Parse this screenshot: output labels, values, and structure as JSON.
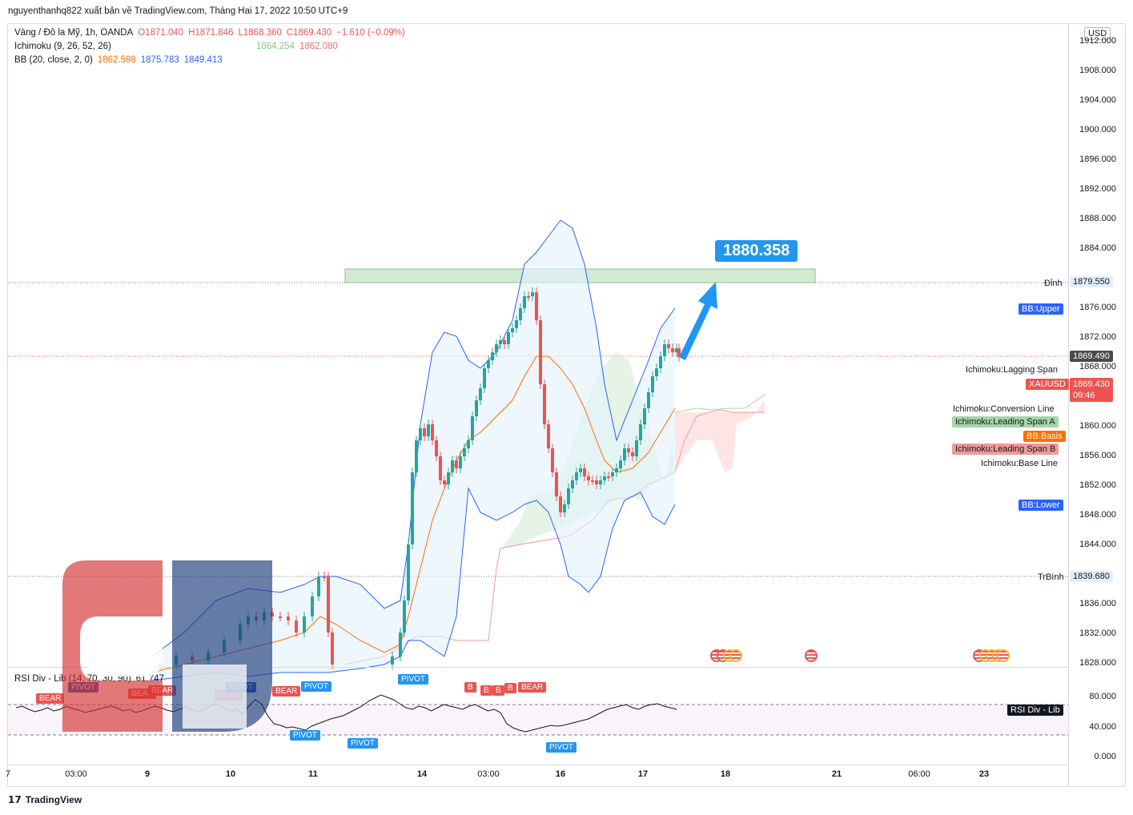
{
  "header": {
    "publish_text": "nguyenthanhq822 xuất bản về TradingView.com, Tháng Hai 17, 2022 10:50 UTC+9"
  },
  "legend": {
    "symbol": "Vàng / Đô la Mỹ, 1h, OANDA",
    "open": "O1871.040",
    "high": "H1871.846",
    "low": "L1868.360",
    "close": "C1869.430",
    "change": "−1.610 (−0.09%)",
    "ichimoku_label": "Ichimoku (9, 26, 52, 26)",
    "ichimoku_v1": "1864.254",
    "ichimoku_v2": "1862.080",
    "bb_label": "BB (20, close, 2, 0)",
    "bb_v1": "1862.598",
    "bb_v2": "1875.783",
    "bb_v3": "1849.413"
  },
  "price_axis": {
    "currency": "USD",
    "ticks": [
      "1912.000",
      "1908.000",
      "1904.000",
      "1900.000",
      "1896.000",
      "1892.000",
      "1888.000",
      "1884.000",
      "1876.000",
      "1872.000",
      "1868.000",
      "1860.000",
      "1856.000",
      "1852.000",
      "1848.000",
      "1844.000",
      "1836.000",
      "1832.000",
      "1828.000"
    ],
    "dinh_label": "Đỉnh",
    "dinh_value": "1879.550",
    "trbinh_label": "TrBình",
    "trbinh_value": "1839.680",
    "last_price": "1869.490",
    "xauusd_label": "XAUUSD",
    "xauusd_value": "1869.430",
    "countdown": "09:46"
  },
  "indicator_tags": {
    "bb_upper": "BB:Upper",
    "lagging": "Ichimoku:Lagging Span",
    "conversion": "Ichimoku:Conversion Line",
    "leading_a": "Ichimoku:Leading Span A",
    "bb_basis": "BB:Basis",
    "leading_b": "Ichimoku:Leading Span B",
    "base_line": "Ichimoku:Base Line",
    "bb_lower": "BB:Lower"
  },
  "target": {
    "value": "1880.358"
  },
  "rsi": {
    "label": "RSI Div - Lib (14, 70, 30, 90)",
    "value": "61.747",
    "tag": "RSI Div - Lib",
    "ticks": [
      "80.000",
      "40.000",
      "0.000"
    ],
    "markers": {
      "bear": "BEAR",
      "pivot": "PIVOT",
      "b": "B"
    }
  },
  "time_axis": {
    "labels": [
      "7",
      "03:00",
      "9",
      "10",
      "11",
      "14",
      "03:00",
      "16",
      "17",
      "18",
      "21",
      "06:00",
      "23"
    ]
  },
  "footer": {
    "brand": "TradingView"
  },
  "colors": {
    "up": "#26a69a",
    "down": "#ef5350",
    "bb_band": "#2962ff",
    "bb_basis": "#ff6d00",
    "span_a": "#a5d6a7",
    "span_b": "#ef9a9a",
    "target": "#2196f3"
  }
}
